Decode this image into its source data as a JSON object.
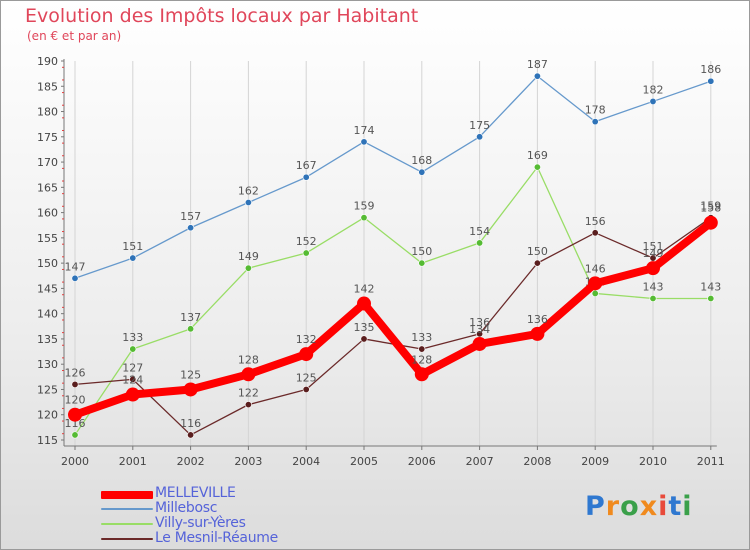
{
  "title": "Evolution des Impôts locaux par Habitant",
  "subtitle": "(en € et par an)",
  "logo": {
    "text": "Proxiti",
    "letter_colors": [
      "#2f78d0",
      "#f08a1e",
      "#3aa04a",
      "#f08a1e",
      "#e84a3a",
      "#2f78d0",
      "#3aa04a"
    ]
  },
  "chart_data": {
    "type": "line",
    "title": "Evolution des Impôts locaux par Habitant",
    "subtitle": "(en € et par an)",
    "xlabel": "",
    "ylabel": "",
    "categories": [
      "2000",
      "2001",
      "2002",
      "2003",
      "2004",
      "2005",
      "2006",
      "2007",
      "2008",
      "2009",
      "2010",
      "2011"
    ],
    "ylim": [
      115,
      190
    ],
    "yticks": [
      115,
      120,
      125,
      130,
      135,
      140,
      145,
      150,
      155,
      160,
      165,
      170,
      175,
      180,
      185,
      190
    ],
    "grid": "vertical",
    "legend_position": "bottom-left",
    "series": [
      {
        "name": "Millebosc",
        "color": "#6699cc",
        "marker": "#2f73b8",
        "values": [
          147,
          151,
          157,
          162,
          167,
          174,
          168,
          175,
          187,
          178,
          182,
          186
        ]
      },
      {
        "name": "Villy-sur-Yères",
        "color": "#99dd66",
        "marker": "#55bb33",
        "values": [
          116,
          133,
          137,
          149,
          152,
          159,
          150,
          154,
          169,
          144,
          143,
          143
        ]
      },
      {
        "name": "Le Mesnil-Réaume",
        "color": "#6b2a2a",
        "marker": "#5a1e1e",
        "values": [
          126,
          127,
          116,
          122,
          125,
          135,
          133,
          136,
          150,
          156,
          151,
          159
        ]
      },
      {
        "name": "MELLEVILLE",
        "color": "#ff0000",
        "marker": "#ff0000",
        "values": [
          120,
          124,
          125,
          128,
          132,
          142,
          128,
          134,
          136,
          146,
          149,
          158
        ]
      }
    ]
  }
}
